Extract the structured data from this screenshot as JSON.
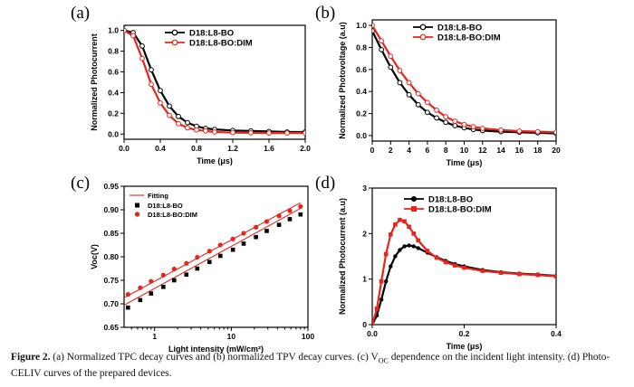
{
  "caption": {
    "fig_label": "Figure 2.",
    "text_a": " (a) Normalized TPC decay curves and (b) normalized TPV decay curves. (c) V",
    "text_sub": "OC",
    "text_b": " dependence on the incident light intensity. (d) Photo-CELIV curves of the prepared devices."
  },
  "colors": {
    "black_series": "#000000",
    "red_series": "#e8241c"
  },
  "chart_data": [
    {
      "panel": "(a)",
      "type": "line",
      "xlabel": "Time (μs)",
      "ylabel": "Normalized  Photocurrent",
      "xlim": [
        0,
        2.0
      ],
      "ylim": [
        -0.05,
        1.05
      ],
      "xticks": [
        0.0,
        0.4,
        0.8,
        1.2,
        1.6,
        2.0
      ],
      "xtick_labels": [
        "0.0",
        "0.4",
        "0.8",
        "1.2",
        "1.6",
        "2.0"
      ],
      "yticks": [
        0.0,
        0.2,
        0.4,
        0.6,
        0.8,
        1.0
      ],
      "ytick_labels": [
        "0.0",
        "0.2",
        "0.4",
        "0.6",
        "0.8",
        "1.0"
      ],
      "legend": "top-right",
      "series": [
        {
          "name": "D18:L8-BO",
          "color": "#000000",
          "marker": "open-circle",
          "x": [
            0.0,
            0.1,
            0.2,
            0.3,
            0.4,
            0.5,
            0.6,
            0.7,
            0.8,
            0.9,
            1.0,
            1.2,
            1.4,
            1.6,
            1.8,
            2.0
          ],
          "y": [
            1.0,
            0.98,
            0.85,
            0.62,
            0.42,
            0.27,
            0.17,
            0.11,
            0.075,
            0.055,
            0.045,
            0.035,
            0.03,
            0.025,
            0.02,
            0.02
          ]
        },
        {
          "name": "D18:L8-BO:DIM",
          "color": "#e8241c",
          "marker": "open-circle",
          "x": [
            0.0,
            0.1,
            0.2,
            0.3,
            0.4,
            0.5,
            0.6,
            0.7,
            0.8,
            0.9,
            1.0,
            1.2,
            1.4,
            1.6,
            1.8,
            2.0
          ],
          "y": [
            1.0,
            0.95,
            0.73,
            0.48,
            0.3,
            0.18,
            0.1,
            0.06,
            0.04,
            0.03,
            0.02,
            0.015,
            0.012,
            0.01,
            0.01,
            0.01
          ]
        }
      ]
    },
    {
      "panel": "(b)",
      "type": "line",
      "xlabel": "Time (μs)",
      "ylabel": "Normalized  Photovoltage (a.u)",
      "xlim": [
        0,
        20
      ],
      "ylim": [
        -0.05,
        1.05
      ],
      "xticks": [
        0,
        2,
        4,
        6,
        8,
        10,
        12,
        14,
        16,
        18,
        20
      ],
      "xtick_labels": [
        "0",
        "2",
        "4",
        "6",
        "8",
        "10",
        "12",
        "14",
        "16",
        "18",
        "20"
      ],
      "yticks": [
        0.0,
        0.2,
        0.4,
        0.6,
        0.8,
        1.0
      ],
      "ytick_labels": [
        "0.0",
        "0.2",
        "0.4",
        "0.6",
        "0.8",
        "1.0"
      ],
      "legend": "top-right",
      "series": [
        {
          "name": "D18:L8-BO",
          "color": "#000000",
          "marker": "open-circle",
          "x": [
            0,
            1,
            2,
            3,
            4,
            5,
            6,
            7,
            8,
            9,
            10,
            11,
            12,
            14,
            16,
            18,
            20
          ],
          "y": [
            0.95,
            0.78,
            0.62,
            0.48,
            0.37,
            0.28,
            0.21,
            0.16,
            0.12,
            0.09,
            0.07,
            0.055,
            0.045,
            0.035,
            0.03,
            0.025,
            0.02
          ]
        },
        {
          "name": "D18:L8-BO:DIM",
          "color": "#e8241c",
          "marker": "open-circle",
          "x": [
            0,
            1,
            2,
            3,
            4,
            5,
            6,
            7,
            8,
            9,
            10,
            11,
            12,
            14,
            16,
            18,
            20
          ],
          "y": [
            1.0,
            0.86,
            0.72,
            0.59,
            0.48,
            0.38,
            0.3,
            0.23,
            0.17,
            0.13,
            0.1,
            0.08,
            0.065,
            0.05,
            0.04,
            0.035,
            0.03
          ]
        }
      ]
    },
    {
      "panel": "(c)",
      "type": "scatter",
      "xlabel": "Light intensity (mW/cm²)",
      "ylabel": "Voc(V)",
      "xscale": "log",
      "xlim": [
        0.4,
        100
      ],
      "ylim": [
        0.65,
        0.95
      ],
      "xticks": [
        1,
        10,
        100
      ],
      "xtick_labels": [
        "1",
        "10",
        "100"
      ],
      "yticks": [
        0.65,
        0.7,
        0.75,
        0.8,
        0.85,
        0.9,
        0.95
      ],
      "ytick_labels": [
        "0.65",
        "0.70",
        "0.75",
        "0.80",
        "0.85",
        "0.90",
        "0.95"
      ],
      "legend": "top-left",
      "fit_label": "Fitting",
      "series": [
        {
          "name": "D18:L8-BO",
          "color": "#000000",
          "marker": "filled-square",
          "x": [
            0.45,
            0.65,
            0.9,
            1.3,
            1.8,
            2.6,
            3.6,
            5.2,
            7.2,
            10.5,
            14.5,
            21,
            29,
            42,
            58,
            80
          ],
          "y": [
            0.692,
            0.708,
            0.722,
            0.736,
            0.75,
            0.762,
            0.775,
            0.789,
            0.802,
            0.815,
            0.828,
            0.842,
            0.855,
            0.868,
            0.88,
            0.89
          ],
          "fit": {
            "x": [
              0.4,
              80
            ],
            "y": [
              0.697,
              0.903
            ]
          }
        },
        {
          "name": "D18:L8-BO:DIM",
          "color": "#e8241c",
          "marker": "filled-circle",
          "x": [
            0.45,
            0.65,
            0.9,
            1.3,
            1.8,
            2.6,
            3.6,
            5.2,
            7.2,
            10.5,
            14.5,
            21,
            29,
            42,
            58,
            80
          ],
          "y": [
            0.72,
            0.734,
            0.748,
            0.761,
            0.774,
            0.786,
            0.799,
            0.812,
            0.825,
            0.838,
            0.85,
            0.863,
            0.875,
            0.887,
            0.898,
            0.907
          ],
          "fit": {
            "x": [
              0.4,
              80
            ],
            "y": [
              0.713,
              0.915
            ]
          }
        }
      ]
    },
    {
      "panel": "(d)",
      "type": "line",
      "xlabel": "Time (μs)",
      "ylabel": "Normalized  Photocurrent (a.u)",
      "xlim": [
        0,
        0.4
      ],
      "ylim": [
        0,
        3
      ],
      "xticks": [
        0.0,
        0.2,
        0.4
      ],
      "xtick_labels": [
        "0.0",
        "0.2",
        "0.4"
      ],
      "yticks": [
        0,
        1,
        2,
        3
      ],
      "ytick_labels": [
        "0",
        "1",
        "2",
        "3"
      ],
      "legend": "top-right",
      "series": [
        {
          "name": "D18:L8-BO",
          "color": "#000000",
          "marker": "filled-circle",
          "x": [
            0.0,
            0.01,
            0.02,
            0.03,
            0.04,
            0.05,
            0.06,
            0.07,
            0.08,
            0.09,
            0.1,
            0.12,
            0.14,
            0.16,
            0.18,
            0.2,
            0.24,
            0.28,
            0.32,
            0.36,
            0.4
          ],
          "y": [
            0.0,
            0.2,
            0.55,
            0.95,
            1.28,
            1.5,
            1.64,
            1.72,
            1.74,
            1.72,
            1.68,
            1.58,
            1.48,
            1.4,
            1.33,
            1.28,
            1.2,
            1.15,
            1.12,
            1.1,
            1.07
          ]
        },
        {
          "name": "D18:L8-BO:DIM",
          "color": "#e8241c",
          "marker": "filled-square",
          "x": [
            0.0,
            0.01,
            0.02,
            0.03,
            0.04,
            0.05,
            0.06,
            0.07,
            0.08,
            0.09,
            0.1,
            0.12,
            0.14,
            0.16,
            0.18,
            0.2,
            0.24,
            0.28,
            0.32,
            0.36,
            0.4
          ],
          "y": [
            0.0,
            0.35,
            0.95,
            1.55,
            1.98,
            2.2,
            2.3,
            2.27,
            2.15,
            2.0,
            1.85,
            1.62,
            1.47,
            1.37,
            1.3,
            1.25,
            1.18,
            1.14,
            1.11,
            1.09,
            1.06
          ]
        }
      ]
    }
  ]
}
